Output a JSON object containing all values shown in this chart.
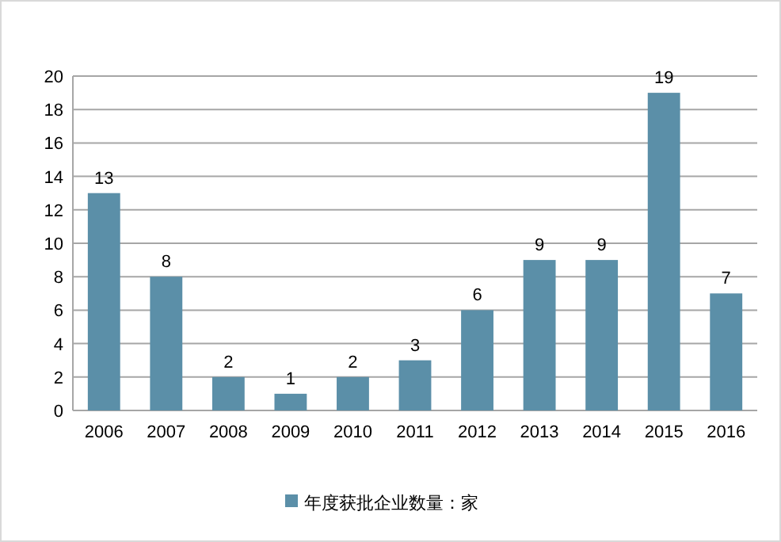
{
  "chart_data": {
    "type": "bar",
    "categories": [
      "2006",
      "2007",
      "2008",
      "2009",
      "2010",
      "2011",
      "2012",
      "2013",
      "2014",
      "2015",
      "2016"
    ],
    "series": [
      {
        "name": "年度获批企业数量：家",
        "color": "#5b8fa8",
        "values": [
          13,
          8,
          2,
          1,
          2,
          3,
          6,
          9,
          9,
          19,
          7
        ]
      }
    ],
    "ylim": [
      0,
      20
    ],
    "yticks": [
      0,
      2,
      4,
      6,
      8,
      10,
      12,
      14,
      16,
      18,
      20
    ],
    "grid": "y",
    "legend": "bottom",
    "data_labels": true
  }
}
